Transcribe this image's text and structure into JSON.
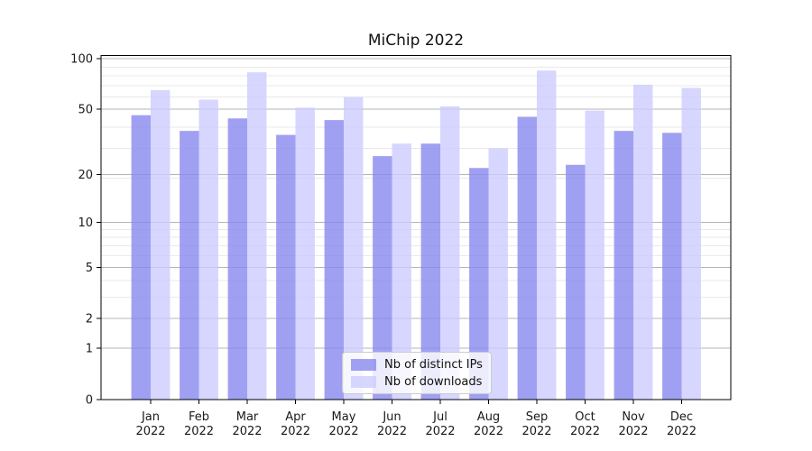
{
  "title": "MiChip 2022",
  "legend": {
    "items": [
      {
        "label": "Nb of distinct IPs",
        "color": "rgba(136,136,240,0.8)"
      },
      {
        "label": "Nb of downloads",
        "color": "rgba(204,204,255,0.8)"
      }
    ]
  },
  "chart_data": {
    "type": "bar",
    "title": "MiChip 2022",
    "categories": [
      "Jan",
      "Feb",
      "Mar",
      "Apr",
      "May",
      "Jun",
      "Jul",
      "Aug",
      "Sep",
      "Oct",
      "Nov",
      "Dec"
    ],
    "category_year": "2022",
    "series": [
      {
        "name": "Nb of distinct IPs",
        "color": "rgba(136,136,240,0.8)",
        "values": [
          46,
          37,
          44,
          35,
          43,
          26,
          31,
          22,
          45,
          23,
          37,
          36
        ]
      },
      {
        "name": "Nb of downloads",
        "color": "rgba(204,204,255,0.8)",
        "values": [
          65,
          57,
          83,
          51,
          59,
          31,
          52,
          29,
          85,
          49,
          70,
          67
        ]
      }
    ],
    "xlabel": "",
    "ylabel": "",
    "yscale": "log1p",
    "ylim": [
      0,
      104.5
    ],
    "yticks": [
      0,
      1,
      2,
      5,
      10,
      20,
      50,
      100
    ],
    "minor_gridlines": [
      3,
      4,
      6,
      7,
      8,
      9,
      19,
      29,
      39,
      59,
      69,
      79,
      89
    ],
    "grid": true,
    "legend_position": "lower center",
    "colors": {
      "grid_major": "#b4b4b4",
      "grid_minor": "#e9e9e9",
      "axis": "#000000",
      "text": "#1a1a1a",
      "background": "#ffffff"
    }
  }
}
